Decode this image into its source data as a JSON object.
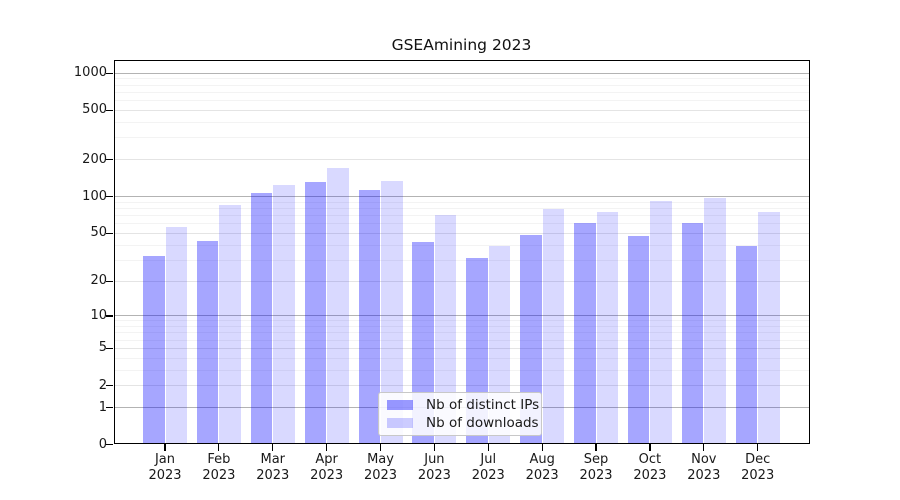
{
  "chart_data": {
    "type": "bar",
    "title": "GSEAmining 2023",
    "categories": [
      "Jan",
      "Feb",
      "Mar",
      "Apr",
      "May",
      "Jun",
      "Jul",
      "Aug",
      "Sep",
      "Oct",
      "Nov",
      "Dec"
    ],
    "category_year_label": "2023",
    "series": [
      {
        "name": "Nb of distinct IPs",
        "color": "#0000ff",
        "opacity": 0.35,
        "values": [
          32,
          43,
          106,
          130,
          112,
          42,
          31,
          48,
          60,
          47,
          60,
          39
        ]
      },
      {
        "name": "Nb of downloads",
        "color": "#0000ff",
        "opacity": 0.15,
        "values": [
          56,
          85,
          122,
          170,
          132,
          70,
          39,
          78,
          74,
          92,
          97,
          74
        ]
      }
    ],
    "xlabel": "",
    "ylabel": "",
    "yscale": "symlog",
    "y_ticks": [
      0,
      1,
      2,
      5,
      10,
      20,
      50,
      100,
      200,
      500,
      1000
    ],
    "y_decade_lines": [
      1,
      10,
      100,
      1000
    ],
    "y_minor_multiples": [
      3,
      4,
      6,
      7,
      8,
      9
    ],
    "ylim": [
      0,
      1230
    ],
    "grid": true,
    "legend": {
      "position": "inside-bottom-center"
    }
  }
}
